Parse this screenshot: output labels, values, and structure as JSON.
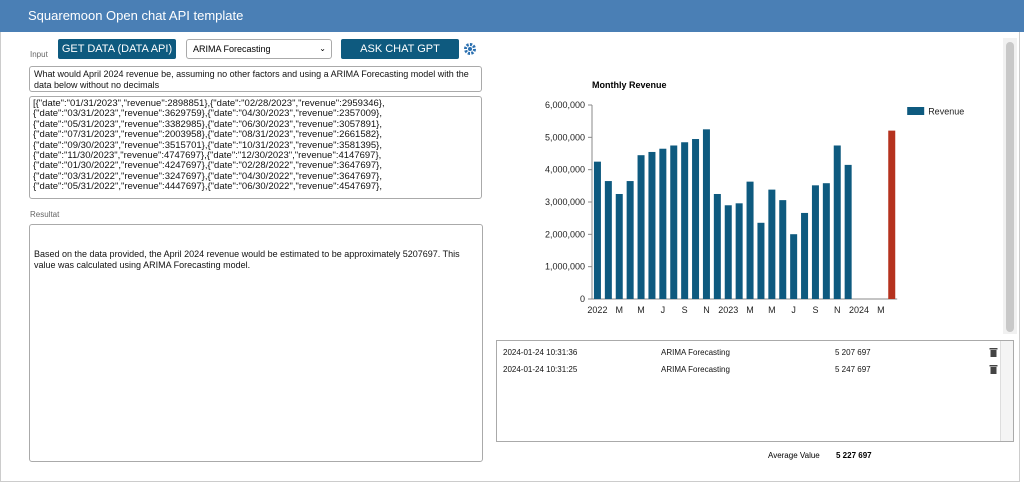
{
  "header": {
    "title": "Squaremoon Open  chat API template"
  },
  "input": {
    "label": "Input",
    "get_data_button": "GET DATA (DATA API)",
    "model_select": "ARIMA Forecasting",
    "ask_button": "ASK CHAT GPT",
    "prompt": "What would April 2024 revenue be, assuming no other factors and using a ARIMA Forecasting model with the data below without no decimals",
    "data_lines": [
      "[{\"date\":\"01/31/2023\",\"revenue\":2898851},{\"date\":\"02/28/2023\",\"revenue\":2959346},",
      "{\"date\":\"03/31/2023\",\"revenue\":3629759},{\"date\":\"04/30/2023\",\"revenue\":2357009},",
      "{\"date\":\"05/31/2023\",\"revenue\":3382985},{\"date\":\"06/30/2023\",\"revenue\":3057891},",
      "{\"date\":\"07/31/2023\",\"revenue\":2003958},{\"date\":\"08/31/2023\",\"revenue\":2661582},",
      "{\"date\":\"09/30/2023\",\"revenue\":3515701},{\"date\":\"10/31/2023\",\"revenue\":3581395},",
      "{\"date\":\"11/30/2023\",\"revenue\":4747697},{\"date\":\"12/30/2023\",\"revenue\":4147697},",
      "{\"date\":\"01/30/2022\",\"revenue\":4247697},{\"date\":\"02/28/2022\",\"revenue\":3647697},",
      "{\"date\":\"03/31/2022\",\"revenue\":3247697},{\"date\":\"04/30/2022\",\"revenue\":3647697},",
      "{\"date\":\"05/31/2022\",\"revenue\":4447697},{\"date\":\"06/30/2022\",\"revenue\":4547697},"
    ]
  },
  "result": {
    "label": "Resultat",
    "text": "Based on the data provided, the April 2024 revenue would be estimated to be approximately 5207697. This value was calculated using ARIMA Forecasting model."
  },
  "chart": {
    "type": "bar",
    "title": "Monthly Revenue",
    "categories": [
      "2022",
      null,
      "M",
      null,
      "M",
      null,
      "J",
      null,
      "S",
      null,
      "N",
      null,
      "2023",
      null,
      "M",
      null,
      "M",
      null,
      "J",
      null,
      "S",
      null,
      "N",
      null,
      "2024",
      null,
      "M",
      null
    ],
    "series": [
      {
        "name": "Revenue",
        "color": "#0e5a7f",
        "values": [
          4247697,
          3647697,
          3247697,
          3647697,
          4447697,
          4547697,
          4647697,
          4747697,
          4847697,
          4947697,
          5247697,
          3247697,
          2898851,
          2959346,
          3629759,
          2357009,
          3382985,
          3057891,
          2003958,
          2661582,
          3515701,
          3581395,
          4747697,
          4147697,
          null,
          null,
          null,
          5207697
        ],
        "colors": [
          "#0e5a7f",
          "#0e5a7f",
          "#0e5a7f",
          "#0e5a7f",
          "#0e5a7f",
          "#0e5a7f",
          "#0e5a7f",
          "#0e5a7f",
          "#0e5a7f",
          "#0e5a7f",
          "#0e5a7f",
          "#0e5a7f",
          "#0e5a7f",
          "#0e5a7f",
          "#0e5a7f",
          "#0e5a7f",
          "#0e5a7f",
          "#0e5a7f",
          "#0e5a7f",
          "#0e5a7f",
          "#0e5a7f",
          "#0e5a7f",
          "#0e5a7f",
          "#0e5a7f",
          "#0e5a7f",
          "#0e5a7f",
          "#0e5a7f",
          "#b5321e"
        ]
      }
    ],
    "ylim": [
      0,
      6000000
    ],
    "yticks": [
      0,
      {
        "value": 1000000,
        "label": "1,000,000"
      },
      {
        "value": 2000000,
        "label": "2,000,000"
      },
      {
        "value": 3000000,
        "label": "3,000,000"
      },
      {
        "value": 4000000,
        "label": "4,000,000"
      },
      {
        "value": 5000000,
        "label": "5,000,000"
      },
      {
        "value": 6000000,
        "label": "6,000,000"
      }
    ],
    "legend": "top-right"
  },
  "history": {
    "rows": [
      [
        "2024-01-24 10:31:36",
        "ARIMA Forecasting",
        "5 207 697"
      ],
      [
        "2024-01-24 10:31:25",
        "ARIMA Forecasting",
        "5 247 697"
      ]
    ],
    "average_label": "Average Value",
    "average_value": "5 227 697"
  }
}
